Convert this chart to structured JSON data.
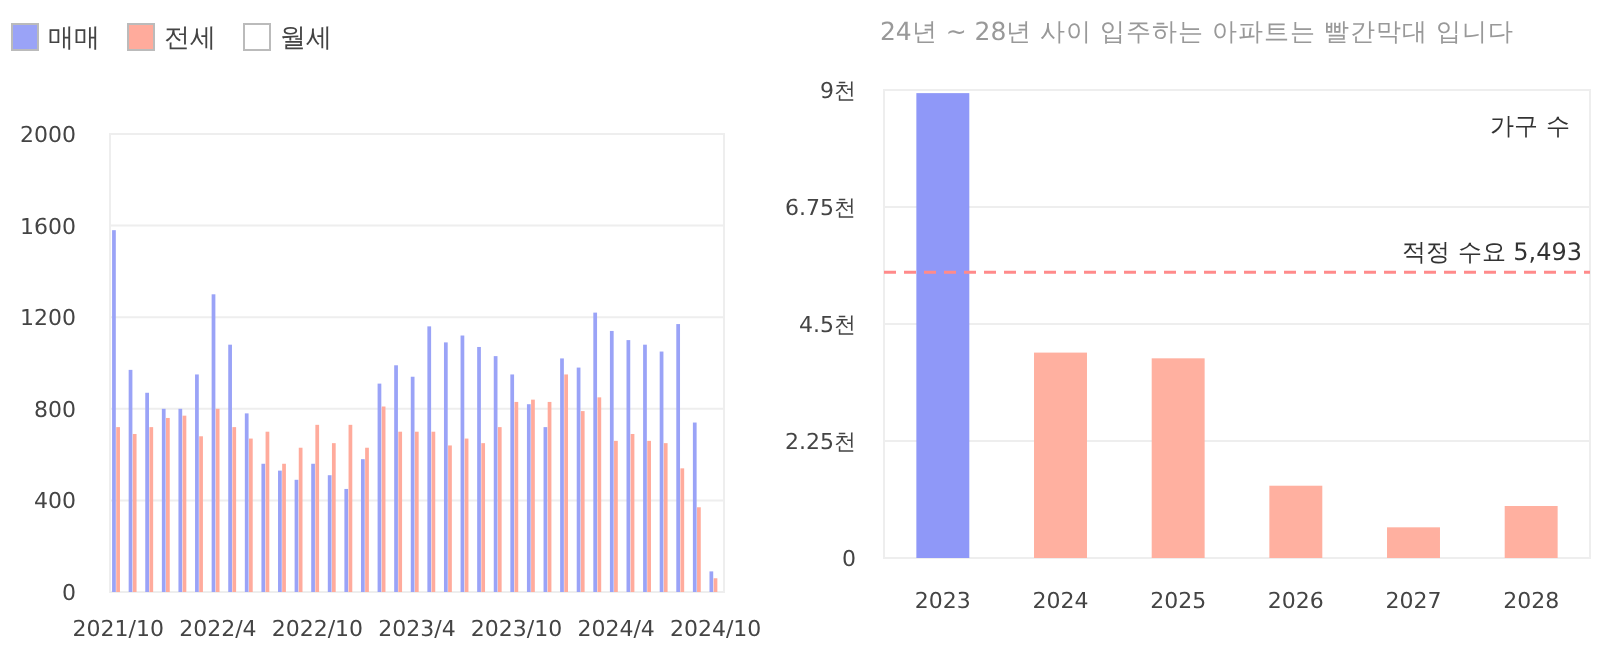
{
  "chart_data": [
    {
      "type": "bar",
      "legend": "top left",
      "grid": "y",
      "ylim": [
        0,
        2000
      ],
      "yticks": [
        0,
        400,
        800,
        1200,
        1600,
        2000
      ],
      "categories": [
        "2021/10",
        null,
        null,
        null,
        null,
        null,
        "2022/4",
        null,
        null,
        null,
        null,
        null,
        "2022/10",
        null,
        null,
        null,
        null,
        null,
        "2023/4",
        null,
        null,
        null,
        null,
        null,
        "2023/10",
        null,
        null,
        null,
        null,
        null,
        "2024/4",
        null,
        null,
        null,
        null,
        null,
        "2024/10"
      ],
      "series": [
        {
          "name": "매매",
          "color": "#9aa3f7",
          "values": [
            1580,
            970,
            870,
            800,
            800,
            950,
            1300,
            1080,
            780,
            560,
            530,
            490,
            560,
            510,
            450,
            580,
            910,
            990,
            940,
            1160,
            1090,
            1120,
            1070,
            1030,
            950,
            820,
            720,
            1020,
            980,
            1220,
            1140,
            1100,
            1080,
            1050,
            1170,
            740,
            90
          ]
        },
        {
          "name": "전세",
          "color": "#ffab9c",
          "values": [
            720,
            690,
            720,
            760,
            770,
            680,
            800,
            720,
            670,
            700,
            560,
            630,
            730,
            650,
            730,
            630,
            810,
            700,
            700,
            700,
            640,
            670,
            650,
            720,
            830,
            840,
            830,
            950,
            790,
            850,
            660,
            690,
            660,
            650,
            540,
            370,
            60
          ]
        },
        {
          "name": "월세",
          "color": "#ffffff",
          "values": [
            null,
            null,
            null,
            null,
            null,
            null,
            null,
            null,
            null,
            null,
            null,
            null,
            null,
            null,
            null,
            null,
            null,
            null,
            null,
            null,
            null,
            null,
            null,
            null,
            null,
            null,
            null,
            null,
            null,
            null,
            null,
            null,
            null,
            null,
            null,
            null,
            null
          ]
        }
      ]
    },
    {
      "type": "bar",
      "title": "24년 ~ 28년 사이 입주하는 아파트는 빨간막대 입니다",
      "grid": "y",
      "ylim": [
        0,
        9
      ],
      "yticks": [
        0,
        {
          "value": 2.25,
          "label": "2.25천"
        },
        {
          "value": 4.5,
          "label": "4.5천"
        },
        {
          "value": 6.75,
          "label": "6.75천"
        },
        {
          "value": 9,
          "label": "9천"
        }
      ],
      "categories": [
        "2023",
        "2024",
        "2025",
        "2026",
        "2027",
        "2028"
      ],
      "values": [
        8.94,
        3.95,
        3.84,
        1.39,
        0.59,
        1.0
      ],
      "colors": [
        "#8f98f8",
        "#ffb0a0",
        "#ffb0a0",
        "#ffb0a0",
        "#ffb0a0",
        "#ffb0a0"
      ],
      "annotations": [
        "가구 수"
      ],
      "ref_lines": [
        {
          "axis": "y",
          "value": 5.493,
          "label": "적정 수요 5,493",
          "color": "#ff8a8a",
          "line_style": "dashed"
        }
      ]
    }
  ]
}
